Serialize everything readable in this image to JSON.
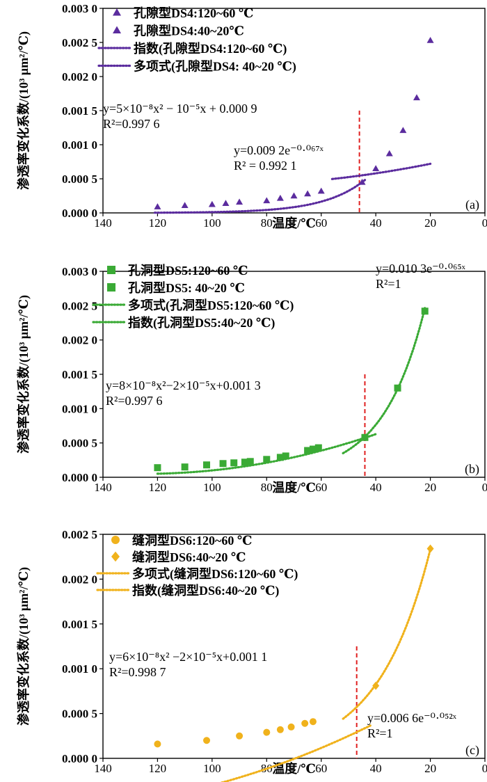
{
  "figure": {
    "x_axis_label": "温度/℃",
    "y_axis_label": "渗透率变化系数/(10³ μm²/℃)"
  },
  "chart_data": [
    {
      "type": "scatter",
      "panel_label": "(a)",
      "xlim": [
        140,
        0
      ],
      "ylim": [
        0,
        0.003
      ],
      "x_ticks": [
        140,
        120,
        100,
        80,
        60,
        40,
        20,
        0
      ],
      "y_tick_labels": [
        "0.000 0",
        "0.000 5",
        "0.001 0",
        "0.001 5",
        "0.002 0",
        "0.002 5",
        "0.003 0"
      ],
      "xlabel": "温度/℃",
      "ylabel": "渗透率变化系数/(10³ μm²/℃)",
      "accent_color": "#5b2c9e",
      "divider_x": 46,
      "series": [
        {
          "name": "孔隙型DS4:120~60 ℃",
          "marker": "triangle",
          "x": [
            120,
            110,
            100,
            95,
            90,
            80,
            75,
            70,
            65,
            60
          ],
          "y": [
            9e-05,
            0.00011,
            0.000125,
            0.00014,
            0.00016,
            0.00018,
            0.000215,
            0.00025,
            0.00028,
            0.00032
          ]
        },
        {
          "name": "孔隙型DS4:40~20℃",
          "marker": "triangle",
          "x": [
            45,
            40,
            35,
            30,
            25,
            20
          ],
          "y": [
            0.00045,
            0.00065,
            0.00087,
            0.00121,
            0.00169,
            0.00253
          ]
        },
        {
          "name": "指数(孔隙型DS4:120~60 ℃)",
          "marker": "dotted-line",
          "fit": {
            "kind": "exp",
            "a": 0.0092,
            "b": -0.067
          },
          "x_range": [
            121,
            44
          ]
        },
        {
          "name": "多项式(孔隙型DS4: 40~20 ℃)",
          "marker": "dotted-line",
          "fit": {
            "kind": "poly",
            "c2": 5e-08,
            "c1": -1e-05,
            "c0": 0.0009
          },
          "x_range": [
            56,
            20
          ]
        }
      ],
      "annotations": [
        {
          "id": "poly",
          "line1": "y=5×10⁻⁸x² − 10⁻⁵x + 0.000 9",
          "line2": "R²=0.997 6"
        },
        {
          "id": "exp",
          "line1": "y=0.009 2e⁻⁰·⁰⁶⁷ˣ",
          "line2": "R² = 0.992 1"
        }
      ]
    },
    {
      "type": "scatter",
      "panel_label": "(b)",
      "xlim": [
        140,
        0
      ],
      "ylim": [
        0,
        0.003
      ],
      "x_ticks": [
        140,
        120,
        100,
        80,
        60,
        40,
        20,
        0
      ],
      "y_tick_labels": [
        "0.000 0",
        "0.000 5",
        "0.001 0",
        "0.001 5",
        "0.002 0",
        "0.002 5",
        "0.003 0"
      ],
      "xlabel": "温度/℃",
      "ylabel": "渗透率变化系数/(10³ μm²/℃)",
      "accent_color": "#3aaa35",
      "divider_x": 44,
      "series": [
        {
          "name": "孔洞型DS5:120~60 ℃",
          "marker": "square",
          "x": [
            120,
            110,
            102,
            96,
            92,
            88,
            86,
            80,
            75,
            73,
            65,
            63,
            61
          ],
          "y": [
            0.00014,
            0.00015,
            0.00018,
            0.0002,
            0.00021,
            0.00022,
            0.00023,
            0.00026,
            0.00029,
            0.00031,
            0.00039,
            0.00041,
            0.00043
          ]
        },
        {
          "name": "孔洞型DS5: 40~20 ℃",
          "marker": "square",
          "x": [
            44,
            32,
            22
          ],
          "y": [
            0.00058,
            0.0013,
            0.00242
          ]
        },
        {
          "name": "多项式(孔洞型DS5:120~60 ℃)",
          "marker": "dotted-line",
          "fit": {
            "kind": "poly",
            "c2": 8e-08,
            "c1": -2e-05,
            "c0": 0.0013
          },
          "x_range": [
            120,
            40
          ]
        },
        {
          "name": "指数(孔洞型DS5:40~20 ℃)",
          "marker": "dotted-line",
          "fit": {
            "kind": "exp",
            "a": 0.0103,
            "b": -0.065
          },
          "x_range": [
            52,
            22
          ]
        }
      ],
      "annotations": [
        {
          "id": "exp",
          "line1": "y=0.010 3e⁻⁰·⁰⁶⁵ˣ",
          "line2": "R²=1"
        },
        {
          "id": "poly",
          "line1": "y=8×10⁻⁸x²−2×10⁻⁵x+0.001 3",
          "line2": "R²=0.997 6"
        }
      ]
    },
    {
      "type": "scatter",
      "panel_label": "(c)",
      "xlim": [
        140,
        0
      ],
      "ylim": [
        0,
        0.0025
      ],
      "x_ticks": [
        140,
        120,
        100,
        80,
        60,
        40,
        20,
        0
      ],
      "y_tick_labels": [
        "0.000 0",
        "0.000 5",
        "0.001 0",
        "0.001 5",
        "0.002 0",
        "0.002 5"
      ],
      "xlabel": "温度/℃",
      "ylabel": "渗透率变化系数/(10³ μm²/℃)",
      "accent_color": "#f0b21c",
      "divider_x": 47,
      "series": [
        {
          "name": "缝洞型DS6:120~60 ℃",
          "marker": "circle",
          "x": [
            120,
            102,
            90,
            80,
            75,
            71,
            66,
            63
          ],
          "y": [
            0.00016,
            0.0002,
            0.00025,
            0.00029,
            0.00032,
            0.00035,
            0.00039,
            0.00041
          ]
        },
        {
          "name": "缝洞型DS6:40~20 ℃",
          "marker": "diamond",
          "x": [
            40,
            20
          ],
          "y": [
            0.00081,
            0.00234
          ]
        },
        {
          "name": "多项式(缝洞型DS6:120~60 ℃)",
          "marker": "dotted-line",
          "fit": {
            "kind": "poly",
            "c2": 6e-08,
            "c1": -2e-05,
            "c0": 0.0011
          },
          "x_range": [
            120,
            42
          ]
        },
        {
          "name": "指数(缝洞型DS6:40~20 ℃)",
          "marker": "dotted-line",
          "fit": {
            "kind": "exp",
            "a": 0.0066,
            "b": -0.052
          },
          "x_range": [
            52,
            20
          ]
        }
      ],
      "annotations": [
        {
          "id": "poly",
          "line1": "y=6×10⁻⁸x² −2×10⁻⁵x+0.001 1",
          "line2": "R²=0.998 7"
        },
        {
          "id": "exp",
          "line1": "y=0.006 6e⁻⁰·⁰⁵²ˣ",
          "line2": "R²=1"
        }
      ]
    }
  ]
}
